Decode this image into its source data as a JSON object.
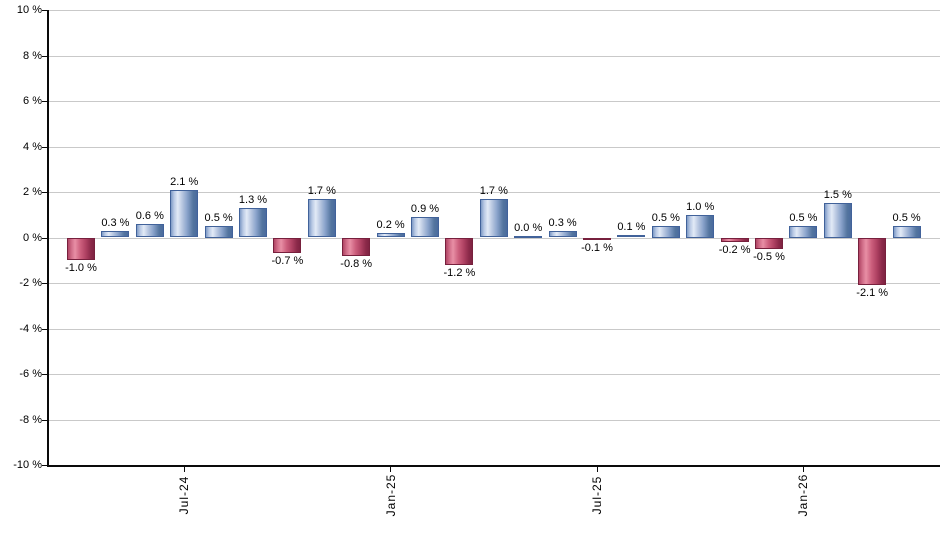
{
  "chart_data": {
    "type": "bar",
    "title": "",
    "xlabel": "",
    "ylabel": "",
    "unit": "%",
    "ylim": [
      -10,
      10
    ],
    "grid": true,
    "legend": "none",
    "y_tick_labels": [
      "10 %",
      "8 %",
      "6 %",
      "4 %",
      "2 %",
      "0 %",
      "-2 %",
      "-4 %",
      "-6 %",
      "-8 %",
      "-10 %"
    ],
    "y_tick_values": [
      10,
      8,
      6,
      4,
      2,
      0,
      -2,
      -4,
      -6,
      -8,
      -10
    ],
    "x_tick_labels": [
      {
        "label": "Jul-24",
        "bar_index": 3
      },
      {
        "label": "Jan-25",
        "bar_index": 9
      },
      {
        "label": "Jul-25",
        "bar_index": 15
      },
      {
        "label": "Jan-26",
        "bar_index": 21
      }
    ],
    "bars": [
      {
        "value": -1.0,
        "label": "-1.0 %"
      },
      {
        "value": 0.3,
        "label": "0.3 %"
      },
      {
        "value": 0.6,
        "label": "0.6 %"
      },
      {
        "value": 2.1,
        "label": "2.1 %"
      },
      {
        "value": 0.5,
        "label": "0.5 %"
      },
      {
        "value": 1.3,
        "label": "1.3 %"
      },
      {
        "value": -0.7,
        "label": "-0.7 %"
      },
      {
        "value": 1.7,
        "label": "1.7 %"
      },
      {
        "value": -0.8,
        "label": "-0.8 %"
      },
      {
        "value": 0.2,
        "label": "0.2 %"
      },
      {
        "value": 0.9,
        "label": "0.9 %"
      },
      {
        "value": -1.2,
        "label": "-1.2 %"
      },
      {
        "value": 1.7,
        "label": "1.7 %"
      },
      {
        "value": 0.0,
        "label": "0.0 %"
      },
      {
        "value": 0.3,
        "label": "0.3 %"
      },
      {
        "value": -0.1,
        "label": "-0.1 %"
      },
      {
        "value": 0.1,
        "label": "0.1 %"
      },
      {
        "value": 0.5,
        "label": "0.5 %"
      },
      {
        "value": 1.0,
        "label": "1.0 %"
      },
      {
        "value": -0.2,
        "label": "-0.2 %"
      },
      {
        "value": -0.5,
        "label": "-0.5 %"
      },
      {
        "value": 0.5,
        "label": "0.5 %"
      },
      {
        "value": 1.5,
        "label": "1.5 %"
      },
      {
        "value": -2.1,
        "label": "-2.1 %"
      },
      {
        "value": 0.5,
        "label": "0.5 %"
      }
    ],
    "colors": {
      "positive_main": "#4a6b9e",
      "positive_highlight": "#e2eaf6",
      "negative_main": "#9e2f52",
      "negative_highlight": "#e88fa5",
      "gridline": "#c9c9c9",
      "axis": "#0a0a0a",
      "label_text": "#000000"
    }
  }
}
